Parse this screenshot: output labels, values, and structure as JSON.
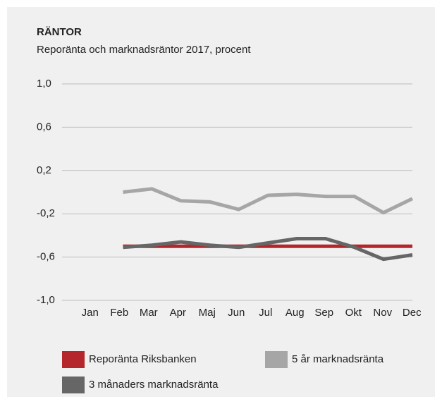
{
  "chart_data": {
    "type": "line",
    "title": "RÄNTOR",
    "subtitle": "Reporänta och marknadsräntor 2017, procent",
    "categories": [
      "Jan",
      "Feb",
      "Mar",
      "Apr",
      "Maj",
      "Jun",
      "Jul",
      "Aug",
      "Sep",
      "Okt",
      "Nov",
      "Dec"
    ],
    "series": [
      {
        "name": "Reporänta Riksbanken",
        "color": "#b5262c",
        "values": [
          null,
          -0.5,
          -0.5,
          -0.5,
          -0.5,
          -0.5,
          -0.5,
          -0.5,
          -0.5,
          -0.5,
          -0.5,
          -0.5
        ]
      },
      {
        "name": "5 år marknadsränta",
        "color": "#a6a6a6",
        "values": [
          null,
          0.0,
          0.03,
          -0.08,
          -0.09,
          -0.16,
          -0.03,
          -0.02,
          -0.04,
          -0.04,
          -0.19,
          -0.06
        ]
      },
      {
        "name": "3 månaders marknadsränta",
        "color": "#666666",
        "values": [
          null,
          -0.51,
          -0.49,
          -0.46,
          -0.49,
          -0.51,
          -0.47,
          -0.43,
          -0.43,
          -0.51,
          -0.62,
          -0.58
        ]
      }
    ],
    "ylim": [
      -1.0,
      1.0
    ],
    "yticks": [
      {
        "value": 1.0,
        "label": "1,0"
      },
      {
        "value": 0.6,
        "label": "0,6"
      },
      {
        "value": 0.2,
        "label": "0,2"
      },
      {
        "value": -0.2,
        "label": "-0,2"
      },
      {
        "value": -0.6,
        "label": "-0,6"
      },
      {
        "value": -1.0,
        "label": "-1,0"
      }
    ],
    "grid": true
  }
}
